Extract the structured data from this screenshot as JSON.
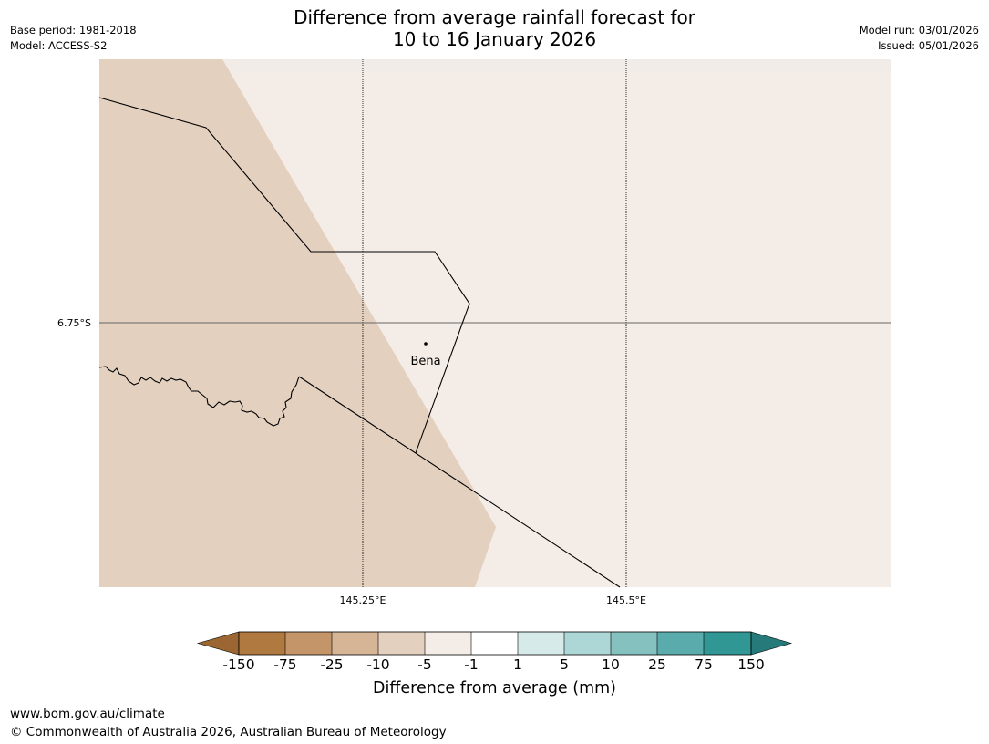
{
  "header": {
    "title_line1": "Difference from average rainfall forecast for",
    "title_line2": "10 to 16 January 2026",
    "base_period": "Base period: 1981-2018",
    "model": "Model: ACCESS-S2",
    "model_run": "Model run: 03/01/2026",
    "issued": "Issued: 05/01/2026"
  },
  "map": {
    "lat_label": "6.75°S",
    "lon_labels": [
      "145.25°E",
      "145.5°E"
    ],
    "town": "Bena",
    "colors": {
      "dry_minus10_minus5": "#e3d0bf",
      "slightly_dry_minus5_minus1": "#f4ece6",
      "border": "#000000",
      "grid_lat": "#666666"
    }
  },
  "colorbar": {
    "label": "Difference from average (mm)",
    "ticks": [
      "-150",
      "-75",
      "-25",
      "-10",
      "-5",
      "-1",
      "1",
      "5",
      "10",
      "25",
      "75",
      "150"
    ],
    "colors": [
      "#9c6632",
      "#b0793f",
      "#c49569",
      "#d5b595",
      "#e3d0bf",
      "#f4ece6",
      "#ffffff",
      "#d7eaea",
      "#add6d6",
      "#84c1bf",
      "#5aacac",
      "#319795",
      "#267b7a"
    ]
  },
  "footer": {
    "url": "www.bom.gov.au/climate",
    "copyright": "© Commonwealth of Australia 2026, Australian Bureau of Meteorology"
  }
}
